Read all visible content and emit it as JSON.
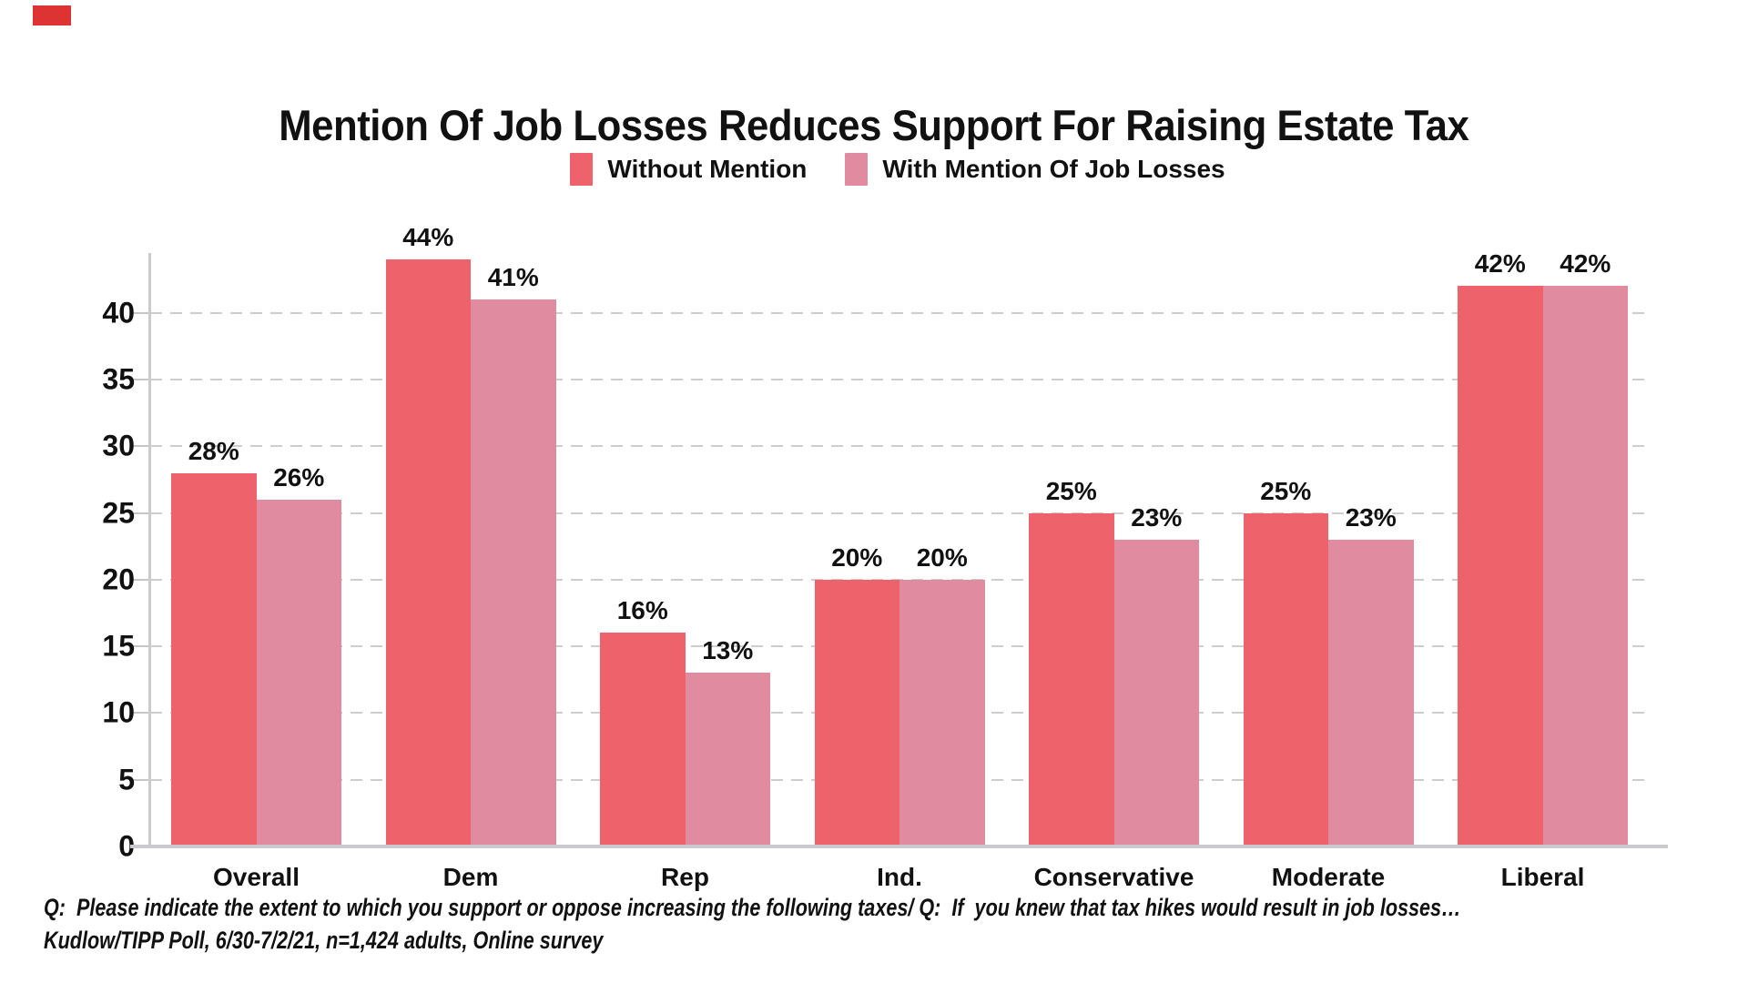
{
  "brand_mark": {
    "color": "#dd3333"
  },
  "title": "Mention Of Job Losses Reduces Support For Raising Estate Tax",
  "legend": [
    {
      "label": "Without Mention",
      "color": "#ee636b"
    },
    {
      "label": "With Mention Of Job Losses",
      "color": "#e08ba0"
    }
  ],
  "footer": {
    "line1": "Q:  Please indicate the extent to which you support or oppose increasing the following taxes/ Q:  If  you knew that tax hikes would result in job losses…",
    "line2": "Kudlow/TIPP Poll, 6/30-7/2/21, n=1,424 adults, Online survey"
  },
  "chart_data": {
    "type": "bar",
    "title": "Mention Of Job Losses Reduces Support For Raising Estate Tax",
    "categories": [
      "Overall",
      "Dem",
      "Rep",
      "Ind.",
      "Conservative",
      "Moderate",
      "Liberal"
    ],
    "series": [
      {
        "name": "Without Mention",
        "color": "#ee636b",
        "values": [
          28,
          44,
          16,
          20,
          25,
          25,
          42
        ]
      },
      {
        "name": "With Mention Of Job Losses",
        "color": "#e08ba0",
        "values": [
          26,
          41,
          13,
          20,
          23,
          23,
          42
        ]
      }
    ],
    "value_suffix": "%",
    "yticks": [
      0,
      5,
      10,
      15,
      20,
      25,
      30,
      35,
      40
    ],
    "ylim": [
      0,
      44
    ],
    "grid": "dashed-horizontal",
    "legend_position": "top",
    "grid_color": "#cdcdcd",
    "axis_color": "#cbcbcb",
    "text_color": "#111111"
  }
}
